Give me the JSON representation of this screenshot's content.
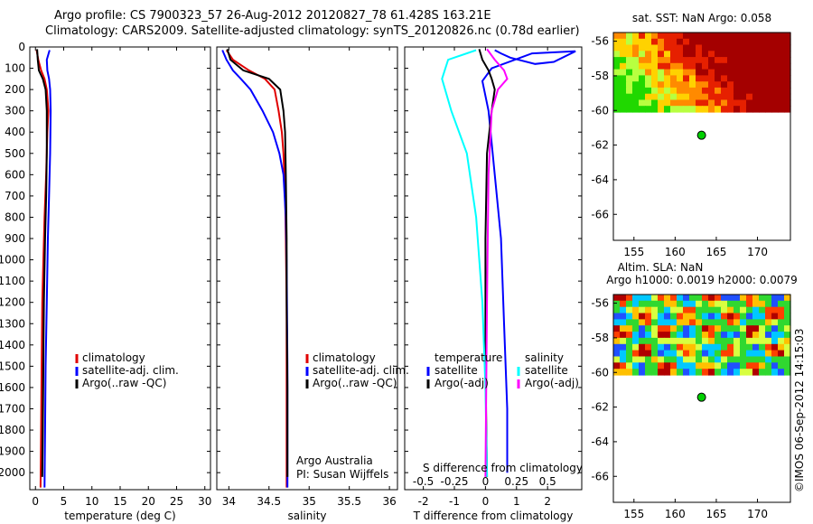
{
  "titles": {
    "line1": "Argo profile: CS 7900323_57 26-Aug-2012 20120827_78 61.428S 163.21E",
    "line2": "Climatology: CARS2009. Satellite-adjusted climatology: synTS_20120826.nc (0.78d earlier)"
  },
  "credit": "©IMOS 06-Sep-2012 14:15:03",
  "colors": {
    "climatology": "#e00000",
    "satellite": "#0000ff",
    "argo": "#000000",
    "cyan": "#00ffff",
    "magenta": "#ff00ff"
  },
  "chart_data": [
    {
      "type": "line",
      "xlabel": "temperature (deg C)",
      "ylabel": "",
      "xlim": [
        -1,
        31
      ],
      "ylim": [
        2080,
        0
      ],
      "xticks": [
        0,
        5,
        10,
        15,
        20,
        25,
        30
      ],
      "xtick_labels": [
        "0",
        "5",
        "10",
        "15",
        "20",
        "25",
        "30"
      ],
      "yticks": [
        0,
        100,
        200,
        300,
        400,
        500,
        600,
        700,
        800,
        900,
        1000,
        1100,
        1200,
        1300,
        1400,
        1500,
        1600,
        1700,
        1800,
        1900,
        2000
      ],
      "ytick_labels": [
        "0",
        "100",
        "200",
        "300",
        "400",
        "500",
        "600",
        "700",
        "800",
        "900",
        "1000",
        "1100",
        "1200",
        "1300",
        "1400",
        "1500",
        "1600",
        "1700",
        "1800",
        "1900",
        "2000"
      ],
      "legend": [
        "climatology",
        "satellite-adj. clim.",
        "Argo(..raw -QC)"
      ],
      "series": [
        {
          "name": "climatology",
          "color": "#e00000",
          "x": [
            0.2,
            0.5,
            1.0,
            1.6,
            2.0,
            2.3,
            2.1,
            1.9,
            1.6,
            1.4,
            1.2,
            1.1,
            1.0,
            0.9
          ],
          "y": [
            15,
            60,
            110,
            150,
            200,
            300,
            400,
            600,
            800,
            1000,
            1200,
            1500,
            1800,
            2070
          ]
        },
        {
          "name": "satellite-adj. clim.",
          "color": "#0000ff",
          "x": [
            2.5,
            2.0,
            2.1,
            2.4,
            2.6,
            2.7,
            2.6,
            2.4,
            2.2,
            2.0,
            1.8,
            1.7,
            1.6
          ],
          "y": [
            15,
            60,
            110,
            150,
            200,
            300,
            500,
            700,
            900,
            1200,
            1500,
            1800,
            2070
          ]
        },
        {
          "name": "Argo(..raw -QC)",
          "color": "#000000",
          "x": [
            0.3,
            0.4,
            0.6,
            1.3,
            1.8,
            2.0,
            2.0,
            1.9,
            1.7,
            1.5,
            1.4,
            1.3,
            1.2
          ],
          "y": [
            10,
            60,
            110,
            150,
            200,
            300,
            500,
            700,
            900,
            1200,
            1500,
            1800,
            2020
          ]
        }
      ]
    },
    {
      "type": "line",
      "xlabel": "salinity",
      "xlim": [
        33.85,
        36.1
      ],
      "ylim": [
        2080,
        0
      ],
      "xticks": [
        34,
        34.5,
        35,
        35.5,
        36
      ],
      "xtick_labels": [
        "34",
        "34.5",
        "35",
        "35.5",
        "36"
      ],
      "legend": [
        "climatology",
        "satellite-adj. clim.",
        "Argo(..raw -QC)"
      ],
      "annotation": [
        "Argo Australia",
        "PI: Susan Wijffels"
      ],
      "series": [
        {
          "name": "climatology",
          "color": "#e00000",
          "x": [
            33.97,
            34.05,
            34.25,
            34.45,
            34.57,
            34.62,
            34.66,
            34.68,
            34.7,
            34.71,
            34.72,
            34.72,
            34.72,
            34.72
          ],
          "y": [
            15,
            60,
            110,
            150,
            200,
            300,
            400,
            500,
            700,
            900,
            1200,
            1500,
            1800,
            2070
          ]
        },
        {
          "name": "satellite-adj. clim.",
          "color": "#0000ff",
          "x": [
            33.92,
            33.97,
            34.05,
            34.15,
            34.27,
            34.42,
            34.55,
            34.63,
            34.68,
            34.71,
            34.72,
            34.73,
            34.73
          ],
          "y": [
            15,
            60,
            110,
            150,
            200,
            300,
            400,
            500,
            600,
            800,
            1000,
            1500,
            2070
          ]
        },
        {
          "name": "Argo(..raw -QC)",
          "color": "#000000",
          "x": [
            33.98,
            34.02,
            34.18,
            34.5,
            34.64,
            34.68,
            34.7,
            34.71,
            34.72,
            34.72,
            34.73,
            34.73
          ],
          "y": [
            10,
            60,
            110,
            150,
            200,
            300,
            400,
            600,
            900,
            1200,
            1600,
            2020
          ]
        }
      ]
    },
    {
      "type": "line",
      "xlabel": "T difference from climatology",
      "xlabel_top": "S difference from climatology",
      "xlim": [
        -2.6,
        3.1
      ],
      "ylim": [
        2080,
        0
      ],
      "xticks": [
        -2,
        -1,
        0,
        1,
        2
      ],
      "xtick_labels": [
        "-2",
        "-1",
        "0",
        "1",
        "2"
      ],
      "xticks_top": [
        -2,
        -1,
        0,
        1,
        2
      ],
      "xtick_labels_top": [
        "-0.5",
        "-0.25",
        "0",
        "0.25",
        "0.5"
      ],
      "legend_left_title": "temperature",
      "legend_left": [
        "satellite",
        "Argo(-adj)"
      ],
      "legend_right_title": "salinity",
      "legend_right": [
        "satellite",
        "Argo(-adj)"
      ],
      "series": [
        {
          "name": "temperature satellite",
          "color": "#0000ff",
          "x": [
            0.3,
            0.5,
            0.8,
            1.6,
            2.2,
            2.9,
            1.5,
            0.2,
            -0.1,
            0.1,
            0.3,
            0.5,
            0.6,
            0.7,
            0.7
          ],
          "y": [
            15,
            30,
            50,
            80,
            70,
            20,
            30,
            100,
            160,
            300,
            600,
            900,
            1300,
            1700,
            2000
          ]
        },
        {
          "name": "temperature Argo(-adj)",
          "color": "#000000",
          "x": [
            -0.2,
            -0.1,
            0.1,
            0.2,
            0.3,
            0.2,
            0.05,
            0.0,
            0.0,
            0.05
          ],
          "y": [
            10,
            60,
            110,
            150,
            200,
            300,
            500,
            900,
            1500,
            2020
          ]
        },
        {
          "name": "salinity satellite",
          "color": "#00ffff",
          "x": [
            -0.3,
            -1.2,
            -1.4,
            -1.1,
            -0.6,
            -0.3,
            -0.1,
            0.0,
            0.05
          ],
          "y": [
            15,
            60,
            150,
            300,
            500,
            800,
            1200,
            1600,
            2020
          ]
        },
        {
          "name": "salinity Argo(-adj)",
          "color": "#ff00ff",
          "x": [
            0.05,
            0.3,
            0.6,
            0.7,
            0.4,
            0.2,
            0.1,
            0.05,
            0.0
          ],
          "y": [
            10,
            60,
            110,
            150,
            200,
            300,
            600,
            1200,
            2020
          ]
        }
      ]
    },
    {
      "type": "heatmap",
      "title": "sat. SST: NaN Argo: 0.058",
      "xticks": [
        155,
        160,
        165,
        170
      ],
      "yticks": [
        -56,
        -58,
        -60,
        -62,
        -64,
        -66
      ],
      "xlim": [
        152.5,
        174
      ],
      "ylim": [
        -67.5,
        -55.5
      ],
      "marker": {
        "lon": 163.21,
        "lat": -61.43
      }
    },
    {
      "type": "heatmap",
      "title_line1": "Altim. SLA: NaN",
      "title_line2": "Argo h1000: 0.0019 h2000: 0.0079",
      "xticks": [
        155,
        160,
        165,
        170
      ],
      "yticks": [
        -56,
        -58,
        -60,
        -62,
        -64,
        -66
      ],
      "xlim": [
        152.5,
        174
      ],
      "ylim": [
        -67.5,
        -55.5
      ],
      "marker": {
        "lon": 163.21,
        "lat": -61.43
      }
    }
  ]
}
